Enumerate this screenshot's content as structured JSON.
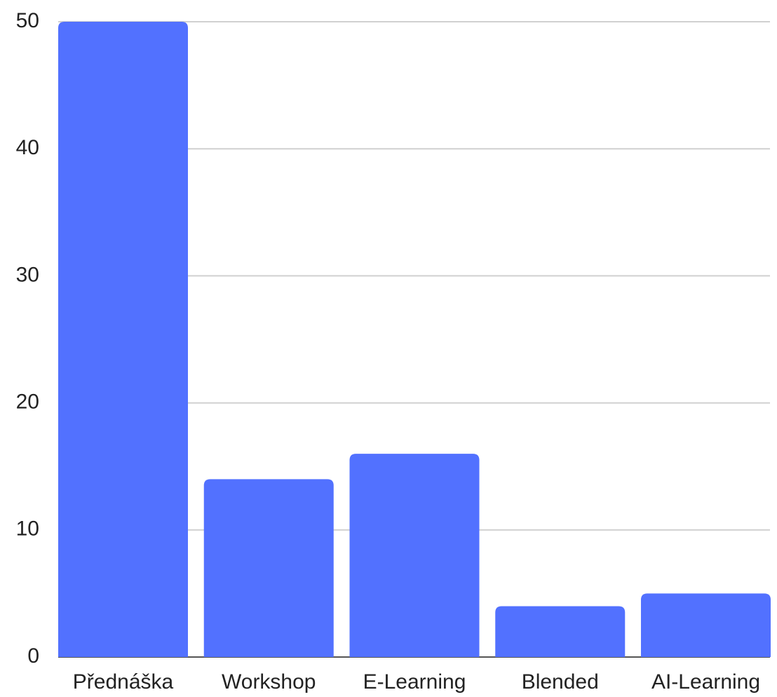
{
  "chart_data": {
    "type": "bar",
    "categories": [
      "Přednáška",
      "Workshop",
      "E-Learning",
      "Blended",
      "AI-Learning"
    ],
    "values": [
      50,
      14,
      16,
      4,
      5
    ],
    "color": "#5271ff",
    "ylim": [
      0,
      50
    ],
    "yticks": [
      0,
      10,
      20,
      30,
      40,
      50
    ],
    "grid": true
  }
}
